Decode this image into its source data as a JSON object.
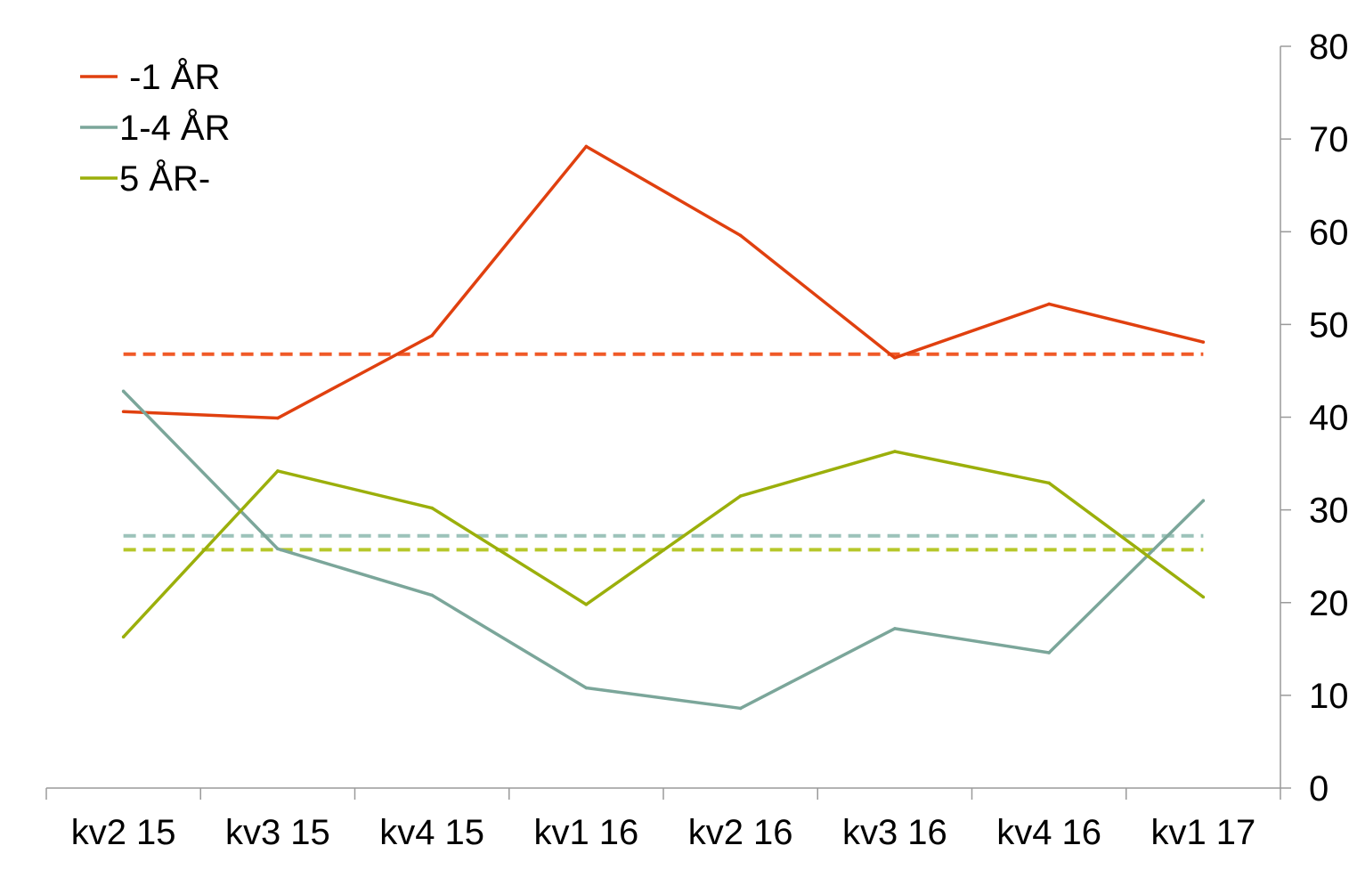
{
  "chart_data": {
    "type": "line",
    "categories": [
      "kv2 15",
      "kv3 15",
      "kv4 15",
      "kv1 16",
      "kv2 16",
      "kv3 16",
      "kv4 16",
      "kv1 17"
    ],
    "series": [
      {
        "name": " -1 ÅR",
        "color": "#E0400F",
        "values": [
          40.6,
          39.9,
          48.8,
          69.2,
          59.6,
          46.4,
          52.2,
          48.1
        ]
      },
      {
        "name": "1-4 ÅR",
        "color": "#7BA69A",
        "values": [
          42.8,
          25.8,
          20.8,
          10.8,
          8.6,
          17.2,
          14.6,
          31.0
        ]
      },
      {
        "name": "5 ÅR-",
        "color": "#9BAF0B",
        "values": [
          16.3,
          34.2,
          30.2,
          19.8,
          31.5,
          36.3,
          32.9,
          20.6
        ]
      }
    ],
    "averages": [
      {
        "series": " -1 ÅR",
        "color": "#F05A28",
        "value": 46.8,
        "style": "dashed"
      },
      {
        "series": "1-4 ÅR",
        "color": "#9CC3BA",
        "value": 27.2,
        "style": "dashed"
      },
      {
        "series": "5 ÅR-",
        "color": "#B6C72A",
        "value": 25.7,
        "style": "dashed"
      }
    ],
    "y_axis": {
      "position": "right",
      "ylim": [
        0,
        80
      ],
      "ticks": [
        0,
        10,
        20,
        30,
        40,
        50,
        60,
        70,
        80
      ]
    },
    "title": "",
    "xlabel": "",
    "ylabel": "",
    "grid": false,
    "legend_position": "top-left"
  }
}
